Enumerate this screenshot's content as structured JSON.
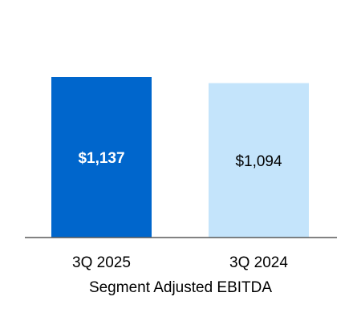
{
  "chart_data": {
    "type": "bar",
    "categories": [
      "3Q 2025",
      "3Q 2024"
    ],
    "values": [
      1137,
      1094
    ],
    "data_labels": [
      "$1,137",
      "$1,094"
    ],
    "title": "",
    "xlabel": "Segment Adjusted EBITDA",
    "ylabel": "",
    "ylim": [
      0,
      1137
    ],
    "grid": false,
    "legend": "none",
    "colors": [
      "#0066CC",
      "#C4E4FB"
    ],
    "label_colors": [
      "#FFFFFF",
      "#000000"
    ],
    "axis_color": "#595959"
  }
}
